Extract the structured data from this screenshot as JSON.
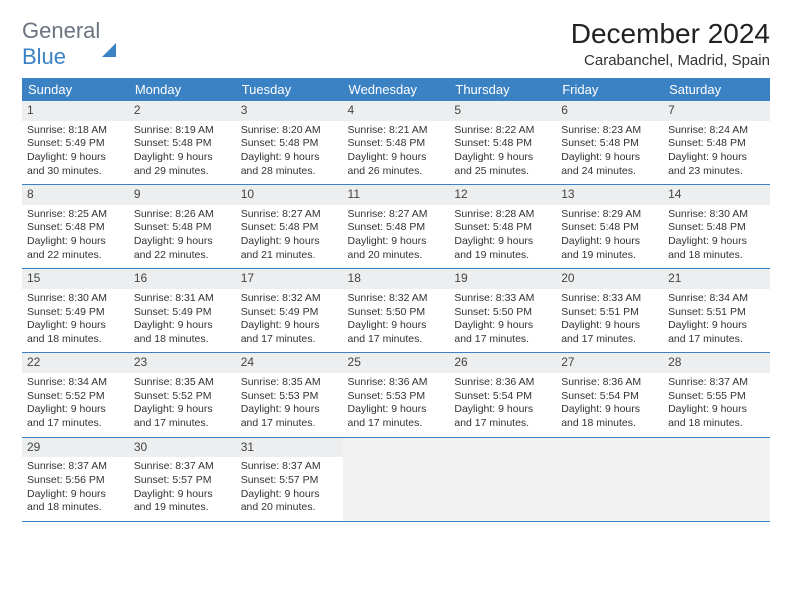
{
  "logo": {
    "text1": "General",
    "text2": "Blue"
  },
  "title": "December 2024",
  "location": "Carabanchel, Madrid, Spain",
  "colors": {
    "header_bg": "#3b82c4",
    "header_text": "#ffffff",
    "daynum_bg": "#eceeef",
    "border": "#3b82c4",
    "empty_bg": "#f2f2f2",
    "logo_gray": "#6b7280",
    "logo_blue": "#3b82c4"
  },
  "weekdays": [
    "Sunday",
    "Monday",
    "Tuesday",
    "Wednesday",
    "Thursday",
    "Friday",
    "Saturday"
  ],
  "days": [
    {
      "n": 1,
      "sunrise": "8:18 AM",
      "sunset": "5:49 PM",
      "daylight": "9 hours and 30 minutes."
    },
    {
      "n": 2,
      "sunrise": "8:19 AM",
      "sunset": "5:48 PM",
      "daylight": "9 hours and 29 minutes."
    },
    {
      "n": 3,
      "sunrise": "8:20 AM",
      "sunset": "5:48 PM",
      "daylight": "9 hours and 28 minutes."
    },
    {
      "n": 4,
      "sunrise": "8:21 AM",
      "sunset": "5:48 PM",
      "daylight": "9 hours and 26 minutes."
    },
    {
      "n": 5,
      "sunrise": "8:22 AM",
      "sunset": "5:48 PM",
      "daylight": "9 hours and 25 minutes."
    },
    {
      "n": 6,
      "sunrise": "8:23 AM",
      "sunset": "5:48 PM",
      "daylight": "9 hours and 24 minutes."
    },
    {
      "n": 7,
      "sunrise": "8:24 AM",
      "sunset": "5:48 PM",
      "daylight": "9 hours and 23 minutes."
    },
    {
      "n": 8,
      "sunrise": "8:25 AM",
      "sunset": "5:48 PM",
      "daylight": "9 hours and 22 minutes."
    },
    {
      "n": 9,
      "sunrise": "8:26 AM",
      "sunset": "5:48 PM",
      "daylight": "9 hours and 22 minutes."
    },
    {
      "n": 10,
      "sunrise": "8:27 AM",
      "sunset": "5:48 PM",
      "daylight": "9 hours and 21 minutes."
    },
    {
      "n": 11,
      "sunrise": "8:27 AM",
      "sunset": "5:48 PM",
      "daylight": "9 hours and 20 minutes."
    },
    {
      "n": 12,
      "sunrise": "8:28 AM",
      "sunset": "5:48 PM",
      "daylight": "9 hours and 19 minutes."
    },
    {
      "n": 13,
      "sunrise": "8:29 AM",
      "sunset": "5:48 PM",
      "daylight": "9 hours and 19 minutes."
    },
    {
      "n": 14,
      "sunrise": "8:30 AM",
      "sunset": "5:48 PM",
      "daylight": "9 hours and 18 minutes."
    },
    {
      "n": 15,
      "sunrise": "8:30 AM",
      "sunset": "5:49 PM",
      "daylight": "9 hours and 18 minutes."
    },
    {
      "n": 16,
      "sunrise": "8:31 AM",
      "sunset": "5:49 PM",
      "daylight": "9 hours and 18 minutes."
    },
    {
      "n": 17,
      "sunrise": "8:32 AM",
      "sunset": "5:49 PM",
      "daylight": "9 hours and 17 minutes."
    },
    {
      "n": 18,
      "sunrise": "8:32 AM",
      "sunset": "5:50 PM",
      "daylight": "9 hours and 17 minutes."
    },
    {
      "n": 19,
      "sunrise": "8:33 AM",
      "sunset": "5:50 PM",
      "daylight": "9 hours and 17 minutes."
    },
    {
      "n": 20,
      "sunrise": "8:33 AM",
      "sunset": "5:51 PM",
      "daylight": "9 hours and 17 minutes."
    },
    {
      "n": 21,
      "sunrise": "8:34 AM",
      "sunset": "5:51 PM",
      "daylight": "9 hours and 17 minutes."
    },
    {
      "n": 22,
      "sunrise": "8:34 AM",
      "sunset": "5:52 PM",
      "daylight": "9 hours and 17 minutes."
    },
    {
      "n": 23,
      "sunrise": "8:35 AM",
      "sunset": "5:52 PM",
      "daylight": "9 hours and 17 minutes."
    },
    {
      "n": 24,
      "sunrise": "8:35 AM",
      "sunset": "5:53 PM",
      "daylight": "9 hours and 17 minutes."
    },
    {
      "n": 25,
      "sunrise": "8:36 AM",
      "sunset": "5:53 PM",
      "daylight": "9 hours and 17 minutes."
    },
    {
      "n": 26,
      "sunrise": "8:36 AM",
      "sunset": "5:54 PM",
      "daylight": "9 hours and 17 minutes."
    },
    {
      "n": 27,
      "sunrise": "8:36 AM",
      "sunset": "5:54 PM",
      "daylight": "9 hours and 18 minutes."
    },
    {
      "n": 28,
      "sunrise": "8:37 AM",
      "sunset": "5:55 PM",
      "daylight": "9 hours and 18 minutes."
    },
    {
      "n": 29,
      "sunrise": "8:37 AM",
      "sunset": "5:56 PM",
      "daylight": "9 hours and 18 minutes."
    },
    {
      "n": 30,
      "sunrise": "8:37 AM",
      "sunset": "5:57 PM",
      "daylight": "9 hours and 19 minutes."
    },
    {
      "n": 31,
      "sunrise": "8:37 AM",
      "sunset": "5:57 PM",
      "daylight": "9 hours and 20 minutes."
    }
  ],
  "labels": {
    "sunrise": "Sunrise: ",
    "sunset": "Sunset: ",
    "daylight": "Daylight: "
  },
  "layout": {
    "start_weekday": 0,
    "cols": 7
  }
}
